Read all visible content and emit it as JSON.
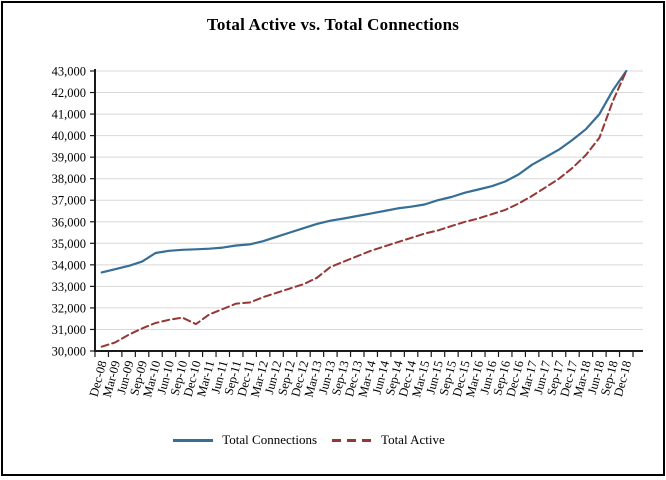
{
  "title": "Total Active vs. Total Connections",
  "colors": {
    "total_connections": "#376E96",
    "total_active": "#963735",
    "gridline": "#D8D8D8",
    "axis": "#1A1A1A"
  },
  "chart_data": {
    "type": "line",
    "title": "Total Active vs. Total Connections",
    "categories": [
      "Dec-08",
      "Mar-09",
      "Jun-09",
      "Sep-09",
      "Mar-10",
      "Jun-10",
      "Sep-10",
      "Dec-10",
      "Mar-11",
      "Jun-11",
      "Sep-11",
      "Dec-11",
      "Mar-12",
      "Jun-12",
      "Sep-12",
      "Dec-12",
      "Mar-13",
      "Jun-13",
      "Sep-13",
      "Dec-13",
      "Mar-14",
      "Jun-14",
      "Sep-14",
      "Dec-14",
      "Mar-15",
      "Jun-15",
      "Sep-15",
      "Dec-15",
      "Mar-16",
      "Jun-16",
      "Sep-16",
      "Dec-16",
      "Mar-17",
      "Jun-17",
      "Sep-17",
      "Dec-17",
      "Mar-18",
      "Jun-18",
      "Sep-18",
      "Dec-18"
    ],
    "series": [
      {
        "name": "Total Connections",
        "color": "#376E96",
        "line_style": "solid",
        "values": [
          33650,
          33800,
          33950,
          34150,
          34550,
          34650,
          34700,
          34720,
          34750,
          34800,
          34900,
          34950,
          35100,
          35300,
          35500,
          35700,
          35900,
          36050,
          36150,
          36270,
          36380,
          36500,
          36620,
          36700,
          36800,
          37000,
          37150,
          37350,
          37500,
          37650,
          37870,
          38200,
          38650,
          39000,
          39350,
          39800,
          40300,
          41000,
          42100,
          43000
        ]
      },
      {
        "name": "Total Active",
        "color": "#963735",
        "line_style": "dashed",
        "values": [
          30200,
          30400,
          30750,
          31050,
          31300,
          31450,
          31550,
          31250,
          31700,
          31950,
          32200,
          32250,
          32500,
          32700,
          32900,
          33100,
          33400,
          33900,
          34150,
          34400,
          34650,
          34850,
          35050,
          35250,
          35450,
          35600,
          35800,
          36000,
          36150,
          36350,
          36550,
          36850,
          37200,
          37600,
          38000,
          38500,
          39100,
          39900,
          41600,
          43000
        ]
      }
    ],
    "ylim": [
      30000,
      43000
    ],
    "ytick_step": 1000,
    "grid": "horizontal",
    "legend_position": "bottom",
    "x_label_rotation_deg": -75
  }
}
